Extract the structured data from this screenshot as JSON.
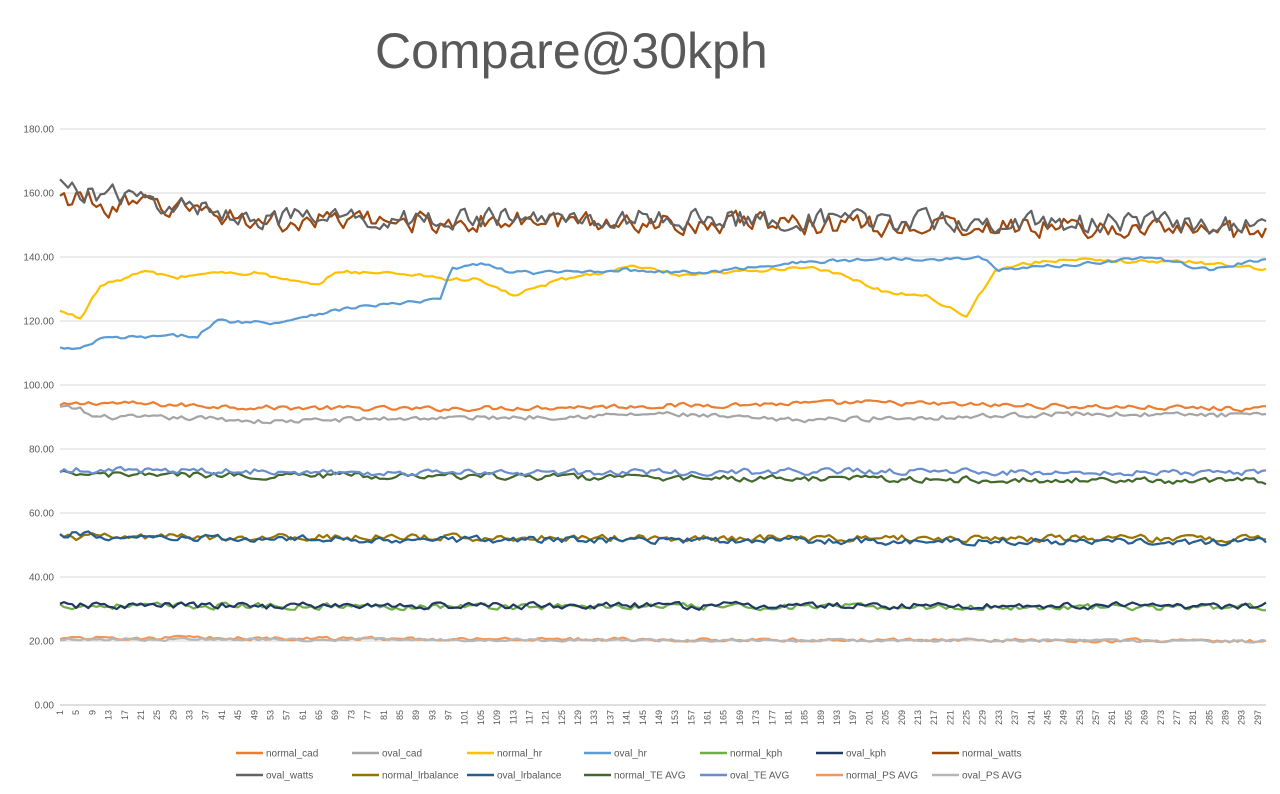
{
  "chart_data": {
    "type": "line",
    "title": "Compare@30kph",
    "xlabel": "",
    "ylabel": "",
    "ylim": [
      0,
      180
    ],
    "yticks": [
      "0.00",
      "20.00",
      "40.00",
      "60.00",
      "80.00",
      "100.00",
      "120.00",
      "140.00",
      "160.00",
      "180.00"
    ],
    "x_range": [
      1,
      299
    ],
    "x_tick_start": 1,
    "x_tick_step": 4,
    "grid": true,
    "legend_position": "bottom",
    "series": [
      {
        "name": "normal_cad",
        "color": "#ED7D31",
        "base": [
          [
            1,
            93.5
          ],
          [
            10,
            94.5
          ],
          [
            50,
            93.0
          ],
          [
            90,
            92.5
          ],
          [
            150,
            93.5
          ],
          [
            200,
            94.5
          ],
          [
            240,
            93.5
          ],
          [
            299,
            92.5
          ]
        ],
        "noise": 0.7
      },
      {
        "name": "oval_cad",
        "color": "#A5A5A5",
        "base": [
          [
            1,
            93.0
          ],
          [
            6,
            92.5
          ],
          [
            9,
            90.0
          ],
          [
            40,
            89.5
          ],
          [
            52,
            88.5
          ],
          [
            80,
            89.5
          ],
          [
            120,
            90.0
          ],
          [
            150,
            91.0
          ],
          [
            180,
            89.0
          ],
          [
            220,
            90.0
          ],
          [
            250,
            91.0
          ],
          [
            299,
            90.5
          ]
        ],
        "noise": 0.7
      },
      {
        "name": "normal_hr",
        "color": "#FFC000",
        "base": [
          [
            1,
            123
          ],
          [
            6,
            121
          ],
          [
            11,
            131
          ],
          [
            16,
            133
          ],
          [
            22,
            135.5
          ],
          [
            30,
            133.5
          ],
          [
            37,
            135
          ],
          [
            50,
            135
          ],
          [
            56,
            133
          ],
          [
            64,
            131
          ],
          [
            70,
            135.5
          ],
          [
            90,
            134.5
          ],
          [
            97,
            133
          ],
          [
            104,
            133
          ],
          [
            113,
            128
          ],
          [
            125,
            133
          ],
          [
            143,
            137
          ],
          [
            155,
            134
          ],
          [
            175,
            136
          ],
          [
            185,
            137
          ],
          [
            195,
            134
          ],
          [
            205,
            129
          ],
          [
            215,
            128
          ],
          [
            225,
            121.5
          ],
          [
            232,
            136
          ],
          [
            245,
            139
          ],
          [
            280,
            138.5
          ],
          [
            299,
            136.5
          ]
        ],
        "noise": 0.5
      },
      {
        "name": "oval_hr",
        "color": "#5B9BD5",
        "base": [
          [
            1,
            111.5
          ],
          [
            6,
            111
          ],
          [
            11,
            114.5
          ],
          [
            35,
            115.5
          ],
          [
            40,
            120
          ],
          [
            55,
            119.5
          ],
          [
            63,
            122
          ],
          [
            75,
            124.5
          ],
          [
            90,
            126
          ],
          [
            95,
            127
          ],
          [
            98,
            136.5
          ],
          [
            106,
            138
          ],
          [
            111,
            135.5
          ],
          [
            120,
            135
          ],
          [
            140,
            136
          ],
          [
            160,
            135
          ],
          [
            180,
            138
          ],
          [
            205,
            139.5
          ],
          [
            230,
            139.5
          ],
          [
            233,
            136
          ],
          [
            255,
            138
          ],
          [
            270,
            140
          ],
          [
            285,
            136
          ],
          [
            299,
            139.5
          ]
        ],
        "noise": 0.5
      },
      {
        "name": "normal_kph",
        "color": "#70AD47",
        "base": [
          [
            1,
            31
          ],
          [
            299,
            30.5
          ]
        ],
        "noise": 0.9
      },
      {
        "name": "oval_kph",
        "color": "#203864",
        "base": [
          [
            1,
            31
          ],
          [
            299,
            31
          ]
        ],
        "noise": 1.0
      },
      {
        "name": "normal_watts",
        "color": "#9E480E",
        "base": [
          [
            1,
            157
          ],
          [
            6,
            160
          ],
          [
            10,
            156
          ],
          [
            25,
            156
          ],
          [
            35,
            155
          ],
          [
            50,
            151
          ],
          [
            150,
            151
          ],
          [
            299,
            148
          ]
        ],
        "noise": 3.0
      },
      {
        "name": "oval_watts",
        "color": "#636363",
        "base": [
          [
            1,
            162
          ],
          [
            10,
            160
          ],
          [
            25,
            157
          ],
          [
            40,
            154
          ],
          [
            55,
            152
          ],
          [
            150,
            152
          ],
          [
            299,
            150
          ]
        ],
        "noise": 3.0
      },
      {
        "name": "normal_lrbalance",
        "color": "#997300",
        "base": [
          [
            1,
            52.5
          ],
          [
            299,
            52
          ]
        ],
        "noise": 1.0
      },
      {
        "name": "oval_lrbalance",
        "color": "#255E91",
        "base": [
          [
            1,
            52.5
          ],
          [
            8,
            54
          ],
          [
            12,
            52
          ],
          [
            299,
            51
          ]
        ],
        "noise": 1.0
      },
      {
        "name": "normal_TE AVG",
        "color": "#43682B",
        "base": [
          [
            1,
            72
          ],
          [
            100,
            71.5
          ],
          [
            200,
            70.5
          ],
          [
            299,
            70
          ]
        ],
        "noise": 0.9
      },
      {
        "name": "oval_TE AVG",
        "color": "#698ED0",
        "base": [
          [
            1,
            73.5
          ],
          [
            100,
            72.5
          ],
          [
            200,
            73
          ],
          [
            299,
            72.5
          ]
        ],
        "noise": 0.9
      },
      {
        "name": "normal_PS AVG",
        "color": "#F1975A",
        "base": [
          [
            1,
            21
          ],
          [
            299,
            20
          ]
        ],
        "noise": 0.5
      },
      {
        "name": "oval_PS AVG",
        "color": "#B7B7B7",
        "base": [
          [
            1,
            20.5
          ],
          [
            299,
            20
          ]
        ],
        "noise": 0.4
      }
    ]
  }
}
